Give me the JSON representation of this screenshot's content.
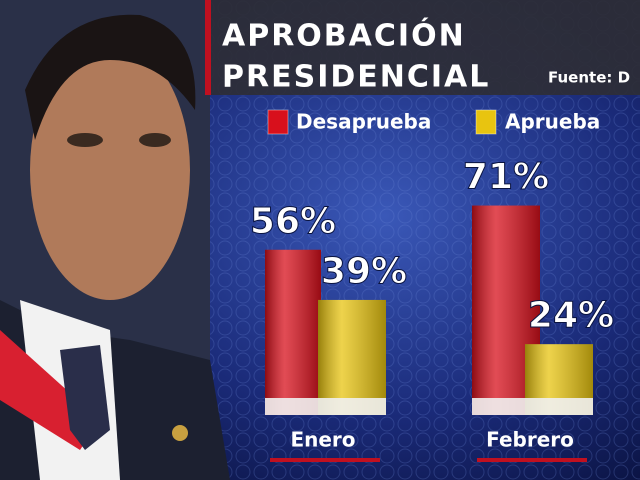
{
  "chart_data": {
    "type": "bar",
    "title_lines": [
      "APROBACIÓN",
      "PRESIDENCIAL"
    ],
    "source": "Fuente: D",
    "categories": [
      "Enero",
      "Febrero"
    ],
    "series": [
      {
        "name": "Desaprueba",
        "color": "#d8101c",
        "values": [
          56,
          71
        ],
        "value_labels": [
          "56%",
          "71%"
        ]
      },
      {
        "name": "Aprueba",
        "color": "#e8c410",
        "values": [
          39,
          24
        ],
        "value_labels": [
          "39%",
          "24%"
        ]
      }
    ]
  }
}
